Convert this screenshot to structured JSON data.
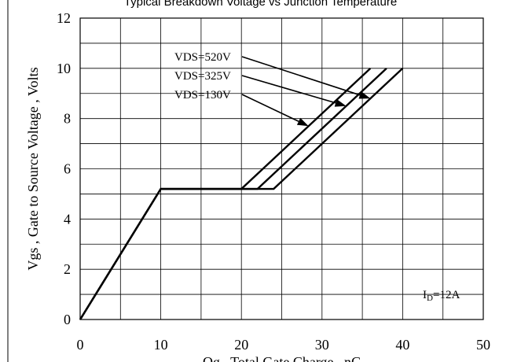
{
  "title": "Typical Breakdown Voltage vs Junction Temperature",
  "chart_data": {
    "type": "line",
    "title": "Typical Breakdown Voltage vs Junction Temperature",
    "xlabel": "Qg , Total Gate Charge , nC",
    "ylabel": "Vgs , Gate to Source Voltage , Volts",
    "xlim": [
      0,
      50
    ],
    "ylim": [
      0,
      12
    ],
    "xticks": [
      "0",
      "10",
      "20",
      "30",
      "40",
      "50"
    ],
    "yticks": [
      "0",
      "2",
      "4",
      "6",
      "8",
      "10",
      "12"
    ],
    "grid": true,
    "annotation_text": "ID=12A",
    "series": [
      {
        "name": "VDS=520V",
        "x": [
          0,
          10,
          24,
          40
        ],
        "y": [
          0,
          5.2,
          5.2,
          10
        ]
      },
      {
        "name": "VDS=325V",
        "x": [
          0,
          10,
          22,
          38
        ],
        "y": [
          0,
          5.2,
          5.2,
          10
        ]
      },
      {
        "name": "VDS=130V",
        "x": [
          0,
          10,
          20,
          36
        ],
        "y": [
          0,
          5.2,
          5.2,
          10
        ]
      }
    ]
  }
}
